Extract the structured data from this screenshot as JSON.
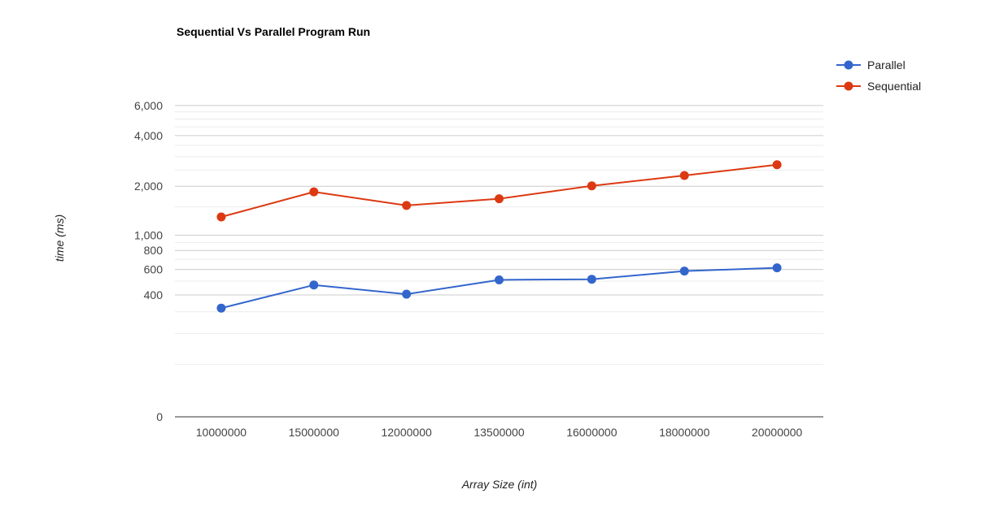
{
  "chart_data": {
    "type": "line",
    "title": "Sequential Vs Parallel Program Run",
    "xlabel": "Array Size (int)",
    "ylabel": "time (ms)",
    "y_scale": "mirror-log",
    "y_ticks": [
      0,
      400,
      600,
      800,
      1000,
      2000,
      4000,
      6000
    ],
    "y_tick_labels": [
      "0",
      "400",
      "600",
      "800",
      "1,000",
      "2,000",
      "4,000",
      "6,000"
    ],
    "grid": true,
    "legend_position": "right",
    "categories": [
      "10000000",
      "15000000",
      "12000000",
      "13500000",
      "16000000",
      "18000000",
      "20000000"
    ],
    "series": [
      {
        "name": "Parallel",
        "color": "#3366cc",
        "values": [
          320,
          470,
          405,
          510,
          515,
          585,
          615
        ]
      },
      {
        "name": "Sequential",
        "color": "#dc3912",
        "values": [
          1300,
          1850,
          1530,
          1680,
          2010,
          2320,
          2690
        ]
      }
    ]
  }
}
